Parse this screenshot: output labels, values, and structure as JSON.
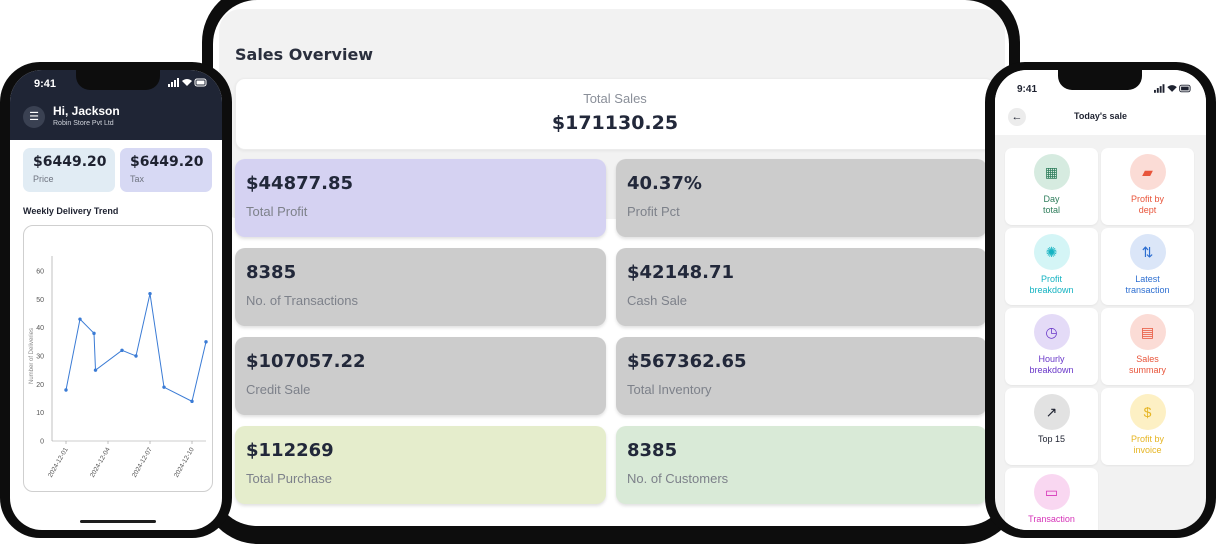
{
  "tablet": {
    "title": "Sales Overview",
    "total": {
      "label": "Total Sales",
      "value": "$171130.25"
    },
    "stats": [
      {
        "value": "$44877.85",
        "label": "Total Profit",
        "color": "#d5d2f2"
      },
      {
        "value": "40.37%",
        "label": "Profit Pct",
        "color": "#cccccc"
      },
      {
        "value": "8385",
        "label": "No. of Transactions",
        "color": "#cccccc"
      },
      {
        "value": "$42148.71",
        "label": "Cash Sale",
        "color": "#cccccc"
      },
      {
        "value": "$107057.22",
        "label": "Credit Sale",
        "color": "#cccccc"
      },
      {
        "value": "$567362.65",
        "label": "Total Inventory",
        "color": "#cccccc"
      },
      {
        "value": "$112269",
        "label": "Total Purchase",
        "color": "#e5edcc"
      },
      {
        "value": "8385",
        "label": "No. of Customers",
        "color": "#d9ead7"
      }
    ]
  },
  "left_phone": {
    "time": "9:41",
    "status_icons": "signal-wifi-battery",
    "greeting": "Hi, Jackson",
    "store": "Robin Store Pvt Ltd",
    "cards": [
      {
        "value": "$6449.20",
        "label": "Price",
        "color": "#e1ecf4"
      },
      {
        "value": "$6449.20",
        "label": "Tax",
        "color": "#d7d9f4"
      }
    ],
    "chart_title": "Weekly Delivery Trend"
  },
  "chart_data": {
    "type": "line",
    "title": "Weekly Delivery Trend",
    "xlabel": "",
    "ylabel": "Number of Deliveries",
    "ylim": [
      0,
      60
    ],
    "yticks": [
      0,
      10,
      20,
      30,
      40,
      50,
      60
    ],
    "xticks": [
      "2024-12-01",
      "2024-12-04",
      "2024-12-07",
      "2024-12-10"
    ],
    "x": [
      "2024-12-01",
      "2024-12-02",
      "2024-12-03",
      "2024-12-03",
      "2024-12-05",
      "2024-12-06",
      "2024-12-07",
      "2024-12-08",
      "2024-12-10",
      "2024-12-11"
    ],
    "values": [
      18,
      43,
      38,
      25,
      32,
      30,
      52,
      19,
      14,
      35
    ],
    "color": "#3a7bd5",
    "grid": false
  },
  "right_phone": {
    "time": "9:41",
    "status_icons": "signal-wifi-battery",
    "title": "Today's sale",
    "tiles": [
      {
        "label": "Day\ntotal",
        "icon": "calendar-icon",
        "glyph": "▦",
        "color": "#2e7d5b",
        "bg": "#d6ebe0"
      },
      {
        "label": "Profit by\ndept",
        "icon": "cards-icon",
        "glyph": "▰",
        "color": "#e8553b",
        "bg": "#fbdcd6"
      },
      {
        "label": "Profit\nbreakdown",
        "icon": "gear-icon",
        "glyph": "✺",
        "color": "#15b3c2",
        "bg": "#d4f5f6"
      },
      {
        "label": "Latest\ntransaction",
        "icon": "swap-arrows-icon",
        "glyph": "⇅",
        "color": "#2e6fd1",
        "bg": "#dbe6f8"
      },
      {
        "label": "Hourly\nbreakdown",
        "icon": "clock-icon",
        "glyph": "◷",
        "color": "#6a38c9",
        "bg": "#e4dbf7"
      },
      {
        "label": "Sales\nsummary",
        "icon": "document-icon",
        "glyph": "▤",
        "color": "#e8553b",
        "bg": "#fbdcd6"
      },
      {
        "label": "Top 15",
        "icon": "arrow-up-right-icon",
        "glyph": "↗",
        "color": "#1e2230",
        "bg": "#e2e2e2"
      },
      {
        "label": "Profit by\ninvoice",
        "icon": "invoice-icon",
        "glyph": "$",
        "color": "#e6b523",
        "bg": "#fdf0c4"
      },
      {
        "label": "Transaction",
        "icon": "receipt-icon",
        "glyph": "▭",
        "color": "#d633b8",
        "bg": "#f9d7f1"
      }
    ]
  }
}
